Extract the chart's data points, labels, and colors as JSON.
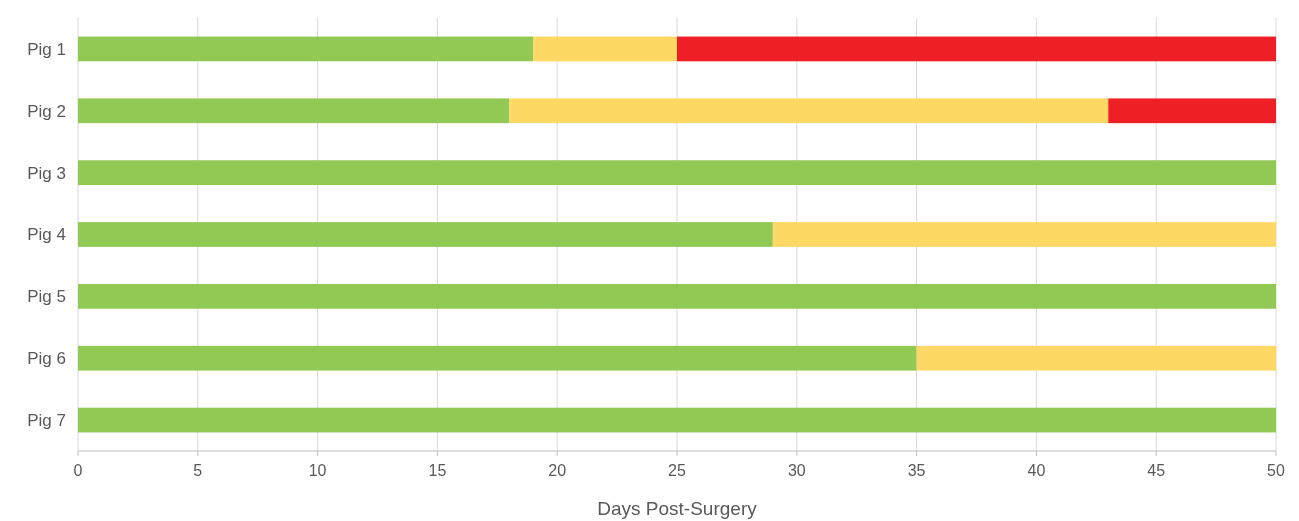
{
  "chart_data": {
    "type": "bar",
    "orientation": "horizontal",
    "stacked": true,
    "xlabel": "Days Post-Surgery",
    "categories": [
      "Pig 1",
      "Pig 2",
      "Pig 3",
      "Pig 4",
      "Pig 5",
      "Pig 6",
      "Pig 7"
    ],
    "series": [
      {
        "color": "#92c955",
        "values": [
          19,
          18,
          50,
          29,
          50,
          35,
          50
        ]
      },
      {
        "color": "#fdd865",
        "values": [
          6,
          25,
          null,
          21,
          null,
          15,
          null
        ]
      },
      {
        "color": "#ee1f25",
        "values": [
          25,
          7,
          null,
          null,
          null,
          null,
          null
        ]
      }
    ],
    "xlim": [
      0,
      50
    ],
    "xticks": [
      0,
      5,
      10,
      15,
      20,
      25,
      30,
      35,
      40,
      45,
      50
    ],
    "grid": "x"
  }
}
